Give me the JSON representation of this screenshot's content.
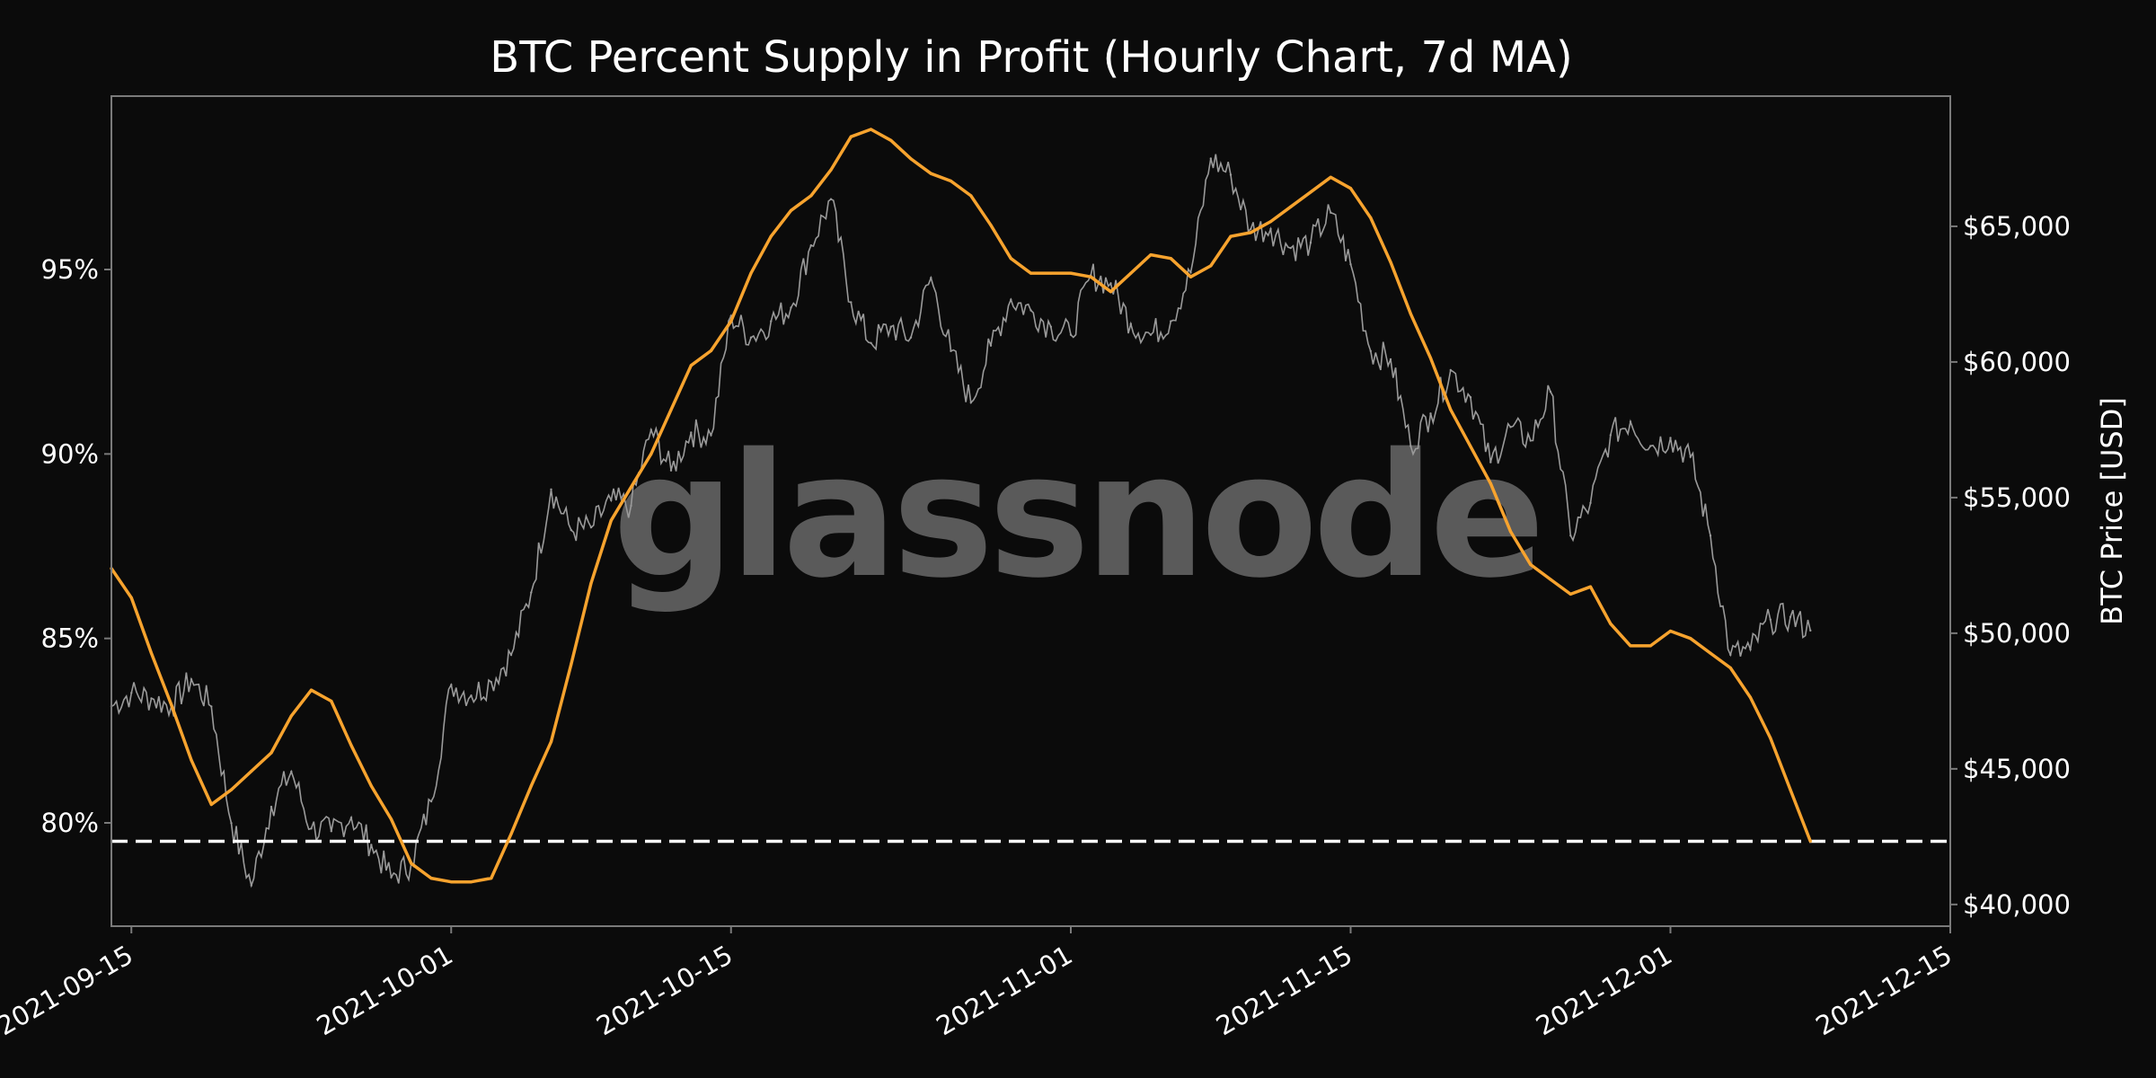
{
  "colors": {
    "background": "#0b0b0b",
    "frame": "#7a7a7a",
    "text": "#ffffff",
    "supply_line": "#f7a32e",
    "price_line": "#9a9a9a",
    "threshold_line": "#ffffff",
    "watermark": "#5a5a5a"
  },
  "watermark": "glassnode",
  "chart_data": {
    "type": "line",
    "title": "BTC Percent Supply in Profit (Hourly Chart, 7d MA)",
    "xlabel": "",
    "ylabel": "",
    "y2label": "BTC Price [USD]",
    "x_range": [
      "2021-09-14",
      "2021-12-15"
    ],
    "ylim": [
      77.2,
      99.7
    ],
    "y2lim": [
      39200,
      69800
    ],
    "x_ticks": [
      "2021-09-15",
      "2021-10-01",
      "2021-10-15",
      "2021-11-01",
      "2021-11-15",
      "2021-12-01",
      "2021-12-15"
    ],
    "y_ticks": [
      {
        "value": 80,
        "label": "80%"
      },
      {
        "value": 85,
        "label": "85%"
      },
      {
        "value": 90,
        "label": "90%"
      },
      {
        "value": 95,
        "label": "95%"
      }
    ],
    "y2_ticks": [
      {
        "value": 40000,
        "label": "$40,000"
      },
      {
        "value": 45000,
        "label": "$45,000"
      },
      {
        "value": 50000,
        "label": "$50,000"
      },
      {
        "value": 55000,
        "label": "$55,000"
      },
      {
        "value": 60000,
        "label": "$60,000"
      },
      {
        "value": 65000,
        "label": "$65,000"
      }
    ],
    "threshold": 79.5,
    "grid": false,
    "series": [
      {
        "axis": "left",
        "style": "orange",
        "points": [
          [
            "2021-09-14",
            86.9
          ],
          [
            "2021-09-15",
            86.1
          ],
          [
            "2021-09-16",
            84.6
          ],
          [
            "2021-09-17",
            83.2
          ],
          [
            "2021-09-18",
            81.7
          ],
          [
            "2021-09-19",
            80.5
          ],
          [
            "2021-09-20",
            80.9
          ],
          [
            "2021-09-21",
            81.4
          ],
          [
            "2021-09-22",
            81.9
          ],
          [
            "2021-09-23",
            82.9
          ],
          [
            "2021-09-24",
            83.6
          ],
          [
            "2021-09-25",
            83.3
          ],
          [
            "2021-09-26",
            82.1
          ],
          [
            "2021-09-27",
            81.0
          ],
          [
            "2021-09-28",
            80.1
          ],
          [
            "2021-09-29",
            78.9
          ],
          [
            "2021-09-30",
            78.5
          ],
          [
            "2021-10-01",
            78.4
          ],
          [
            "2021-10-02",
            78.4
          ],
          [
            "2021-10-03",
            78.5
          ],
          [
            "2021-10-04",
            79.7
          ],
          [
            "2021-10-05",
            81.0
          ],
          [
            "2021-10-06",
            82.2
          ],
          [
            "2021-10-07",
            84.3
          ],
          [
            "2021-10-08",
            86.5
          ],
          [
            "2021-10-09",
            88.2
          ],
          [
            "2021-10-10",
            89.1
          ],
          [
            "2021-10-11",
            90.0
          ],
          [
            "2021-10-12",
            91.2
          ],
          [
            "2021-10-13",
            92.4
          ],
          [
            "2021-10-14",
            92.8
          ],
          [
            "2021-10-15",
            93.6
          ],
          [
            "2021-10-16",
            94.9
          ],
          [
            "2021-10-17",
            95.9
          ],
          [
            "2021-10-18",
            96.6
          ],
          [
            "2021-10-19",
            97.0
          ],
          [
            "2021-10-20",
            97.7
          ],
          [
            "2021-10-21",
            98.6
          ],
          [
            "2021-10-22",
            98.8
          ],
          [
            "2021-10-23",
            98.5
          ],
          [
            "2021-10-24",
            98.0
          ],
          [
            "2021-10-25",
            97.6
          ],
          [
            "2021-10-26",
            97.4
          ],
          [
            "2021-10-27",
            97.0
          ],
          [
            "2021-10-28",
            96.2
          ],
          [
            "2021-10-29",
            95.3
          ],
          [
            "2021-10-30",
            94.9
          ],
          [
            "2021-10-31",
            94.9
          ],
          [
            "2021-11-01",
            94.9
          ],
          [
            "2021-11-02",
            94.8
          ],
          [
            "2021-11-03",
            94.4
          ],
          [
            "2021-11-04",
            94.9
          ],
          [
            "2021-11-05",
            95.4
          ],
          [
            "2021-11-06",
            95.3
          ],
          [
            "2021-11-07",
            94.8
          ],
          [
            "2021-11-08",
            95.1
          ],
          [
            "2021-11-09",
            95.9
          ],
          [
            "2021-11-10",
            96.0
          ],
          [
            "2021-11-11",
            96.3
          ],
          [
            "2021-11-12",
            96.7
          ],
          [
            "2021-11-13",
            97.1
          ],
          [
            "2021-11-14",
            97.5
          ],
          [
            "2021-11-15",
            97.2
          ],
          [
            "2021-11-16",
            96.4
          ],
          [
            "2021-11-17",
            95.2
          ],
          [
            "2021-11-18",
            93.8
          ],
          [
            "2021-11-19",
            92.6
          ],
          [
            "2021-11-20",
            91.2
          ],
          [
            "2021-11-21",
            90.2
          ],
          [
            "2021-11-22",
            89.2
          ],
          [
            "2021-11-23",
            87.9
          ],
          [
            "2021-11-24",
            87.0
          ],
          [
            "2021-11-25",
            86.6
          ],
          [
            "2021-11-26",
            86.2
          ],
          [
            "2021-11-27",
            86.4
          ],
          [
            "2021-11-28",
            85.4
          ],
          [
            "2021-11-29",
            84.8
          ],
          [
            "2021-11-30",
            84.8
          ],
          [
            "2021-12-01",
            85.2
          ],
          [
            "2021-12-02",
            85.0
          ],
          [
            "2021-12-03",
            84.6
          ],
          [
            "2021-12-04",
            84.2
          ],
          [
            "2021-12-05",
            83.4
          ],
          [
            "2021-12-06",
            82.3
          ],
          [
            "2021-12-07",
            80.9
          ],
          [
            "2021-12-08",
            79.5
          ]
        ]
      },
      {
        "axis": "right",
        "style": "grey",
        "points": [
          [
            "2021-09-14",
            47300
          ],
          [
            "2021-09-15",
            47800
          ],
          [
            "2021-09-16",
            47600
          ],
          [
            "2021-09-17",
            47300
          ],
          [
            "2021-09-18",
            48300
          ],
          [
            "2021-09-19",
            47300
          ],
          [
            "2021-09-20",
            43000
          ],
          [
            "2021-09-21",
            40700
          ],
          [
            "2021-09-22",
            43600
          ],
          [
            "2021-09-23",
            44900
          ],
          [
            "2021-09-24",
            42800
          ],
          [
            "2021-09-25",
            42700
          ],
          [
            "2021-09-26",
            43200
          ],
          [
            "2021-09-27",
            42200
          ],
          [
            "2021-09-28",
            41000
          ],
          [
            "2021-09-29",
            41500
          ],
          [
            "2021-09-30",
            43800
          ],
          [
            "2021-10-01",
            48100
          ],
          [
            "2021-10-02",
            47700
          ],
          [
            "2021-10-03",
            48200
          ],
          [
            "2021-10-04",
            49200
          ],
          [
            "2021-10-05",
            51500
          ],
          [
            "2021-10-06",
            55300
          ],
          [
            "2021-10-07",
            53800
          ],
          [
            "2021-10-08",
            53900
          ],
          [
            "2021-10-09",
            54900
          ],
          [
            "2021-10-10",
            54700
          ],
          [
            "2021-10-11",
            57500
          ],
          [
            "2021-10-12",
            56000
          ],
          [
            "2021-10-13",
            57400
          ],
          [
            "2021-10-14",
            57300
          ],
          [
            "2021-10-15",
            61700
          ],
          [
            "2021-10-16",
            60900
          ],
          [
            "2021-10-17",
            61500
          ],
          [
            "2021-10-18",
            62000
          ],
          [
            "2021-10-19",
            64300
          ],
          [
            "2021-10-20",
            66000
          ],
          [
            "2021-10-21",
            62200
          ],
          [
            "2021-10-22",
            60700
          ],
          [
            "2021-10-23",
            61300
          ],
          [
            "2021-10-24",
            60900
          ],
          [
            "2021-10-25",
            63100
          ],
          [
            "2021-10-26",
            60400
          ],
          [
            "2021-10-27",
            58500
          ],
          [
            "2021-10-28",
            60600
          ],
          [
            "2021-10-29",
            62300
          ],
          [
            "2021-10-30",
            61900
          ],
          [
            "2021-10-31",
            61300
          ],
          [
            "2021-11-01",
            61000
          ],
          [
            "2021-11-02",
            63200
          ],
          [
            "2021-11-03",
            62900
          ],
          [
            "2021-11-04",
            61400
          ],
          [
            "2021-11-05",
            61000
          ],
          [
            "2021-11-06",
            61500
          ],
          [
            "2021-11-07",
            63300
          ],
          [
            "2021-11-08",
            67500
          ],
          [
            "2021-11-09",
            66900
          ],
          [
            "2021-11-10",
            64900
          ],
          [
            "2021-11-11",
            64900
          ],
          [
            "2021-11-12",
            64200
          ],
          [
            "2021-11-13",
            64400
          ],
          [
            "2021-11-14",
            65500
          ],
          [
            "2021-11-15",
            63600
          ],
          [
            "2021-11-16",
            60400
          ],
          [
            "2021-11-17",
            60100
          ],
          [
            "2021-11-18",
            56900
          ],
          [
            "2021-11-19",
            58100
          ],
          [
            "2021-11-20",
            59700
          ],
          [
            "2021-11-21",
            58700
          ],
          [
            "2021-11-22",
            56300
          ],
          [
            "2021-11-23",
            57600
          ],
          [
            "2021-11-24",
            57100
          ],
          [
            "2021-11-25",
            58900
          ],
          [
            "2021-11-26",
            53600
          ],
          [
            "2021-11-27",
            54800
          ],
          [
            "2021-11-28",
            57300
          ],
          [
            "2021-11-29",
            57800
          ],
          [
            "2021-11-30",
            56900
          ],
          [
            "2021-12-01",
            57200
          ],
          [
            "2021-12-02",
            56500
          ],
          [
            "2021-12-03",
            53600
          ],
          [
            "2021-12-04",
            49200
          ],
          [
            "2021-12-05",
            49400
          ],
          [
            "2021-12-06",
            50500
          ],
          [
            "2021-12-07",
            50600
          ],
          [
            "2021-12-08",
            50100
          ]
        ]
      }
    ]
  }
}
